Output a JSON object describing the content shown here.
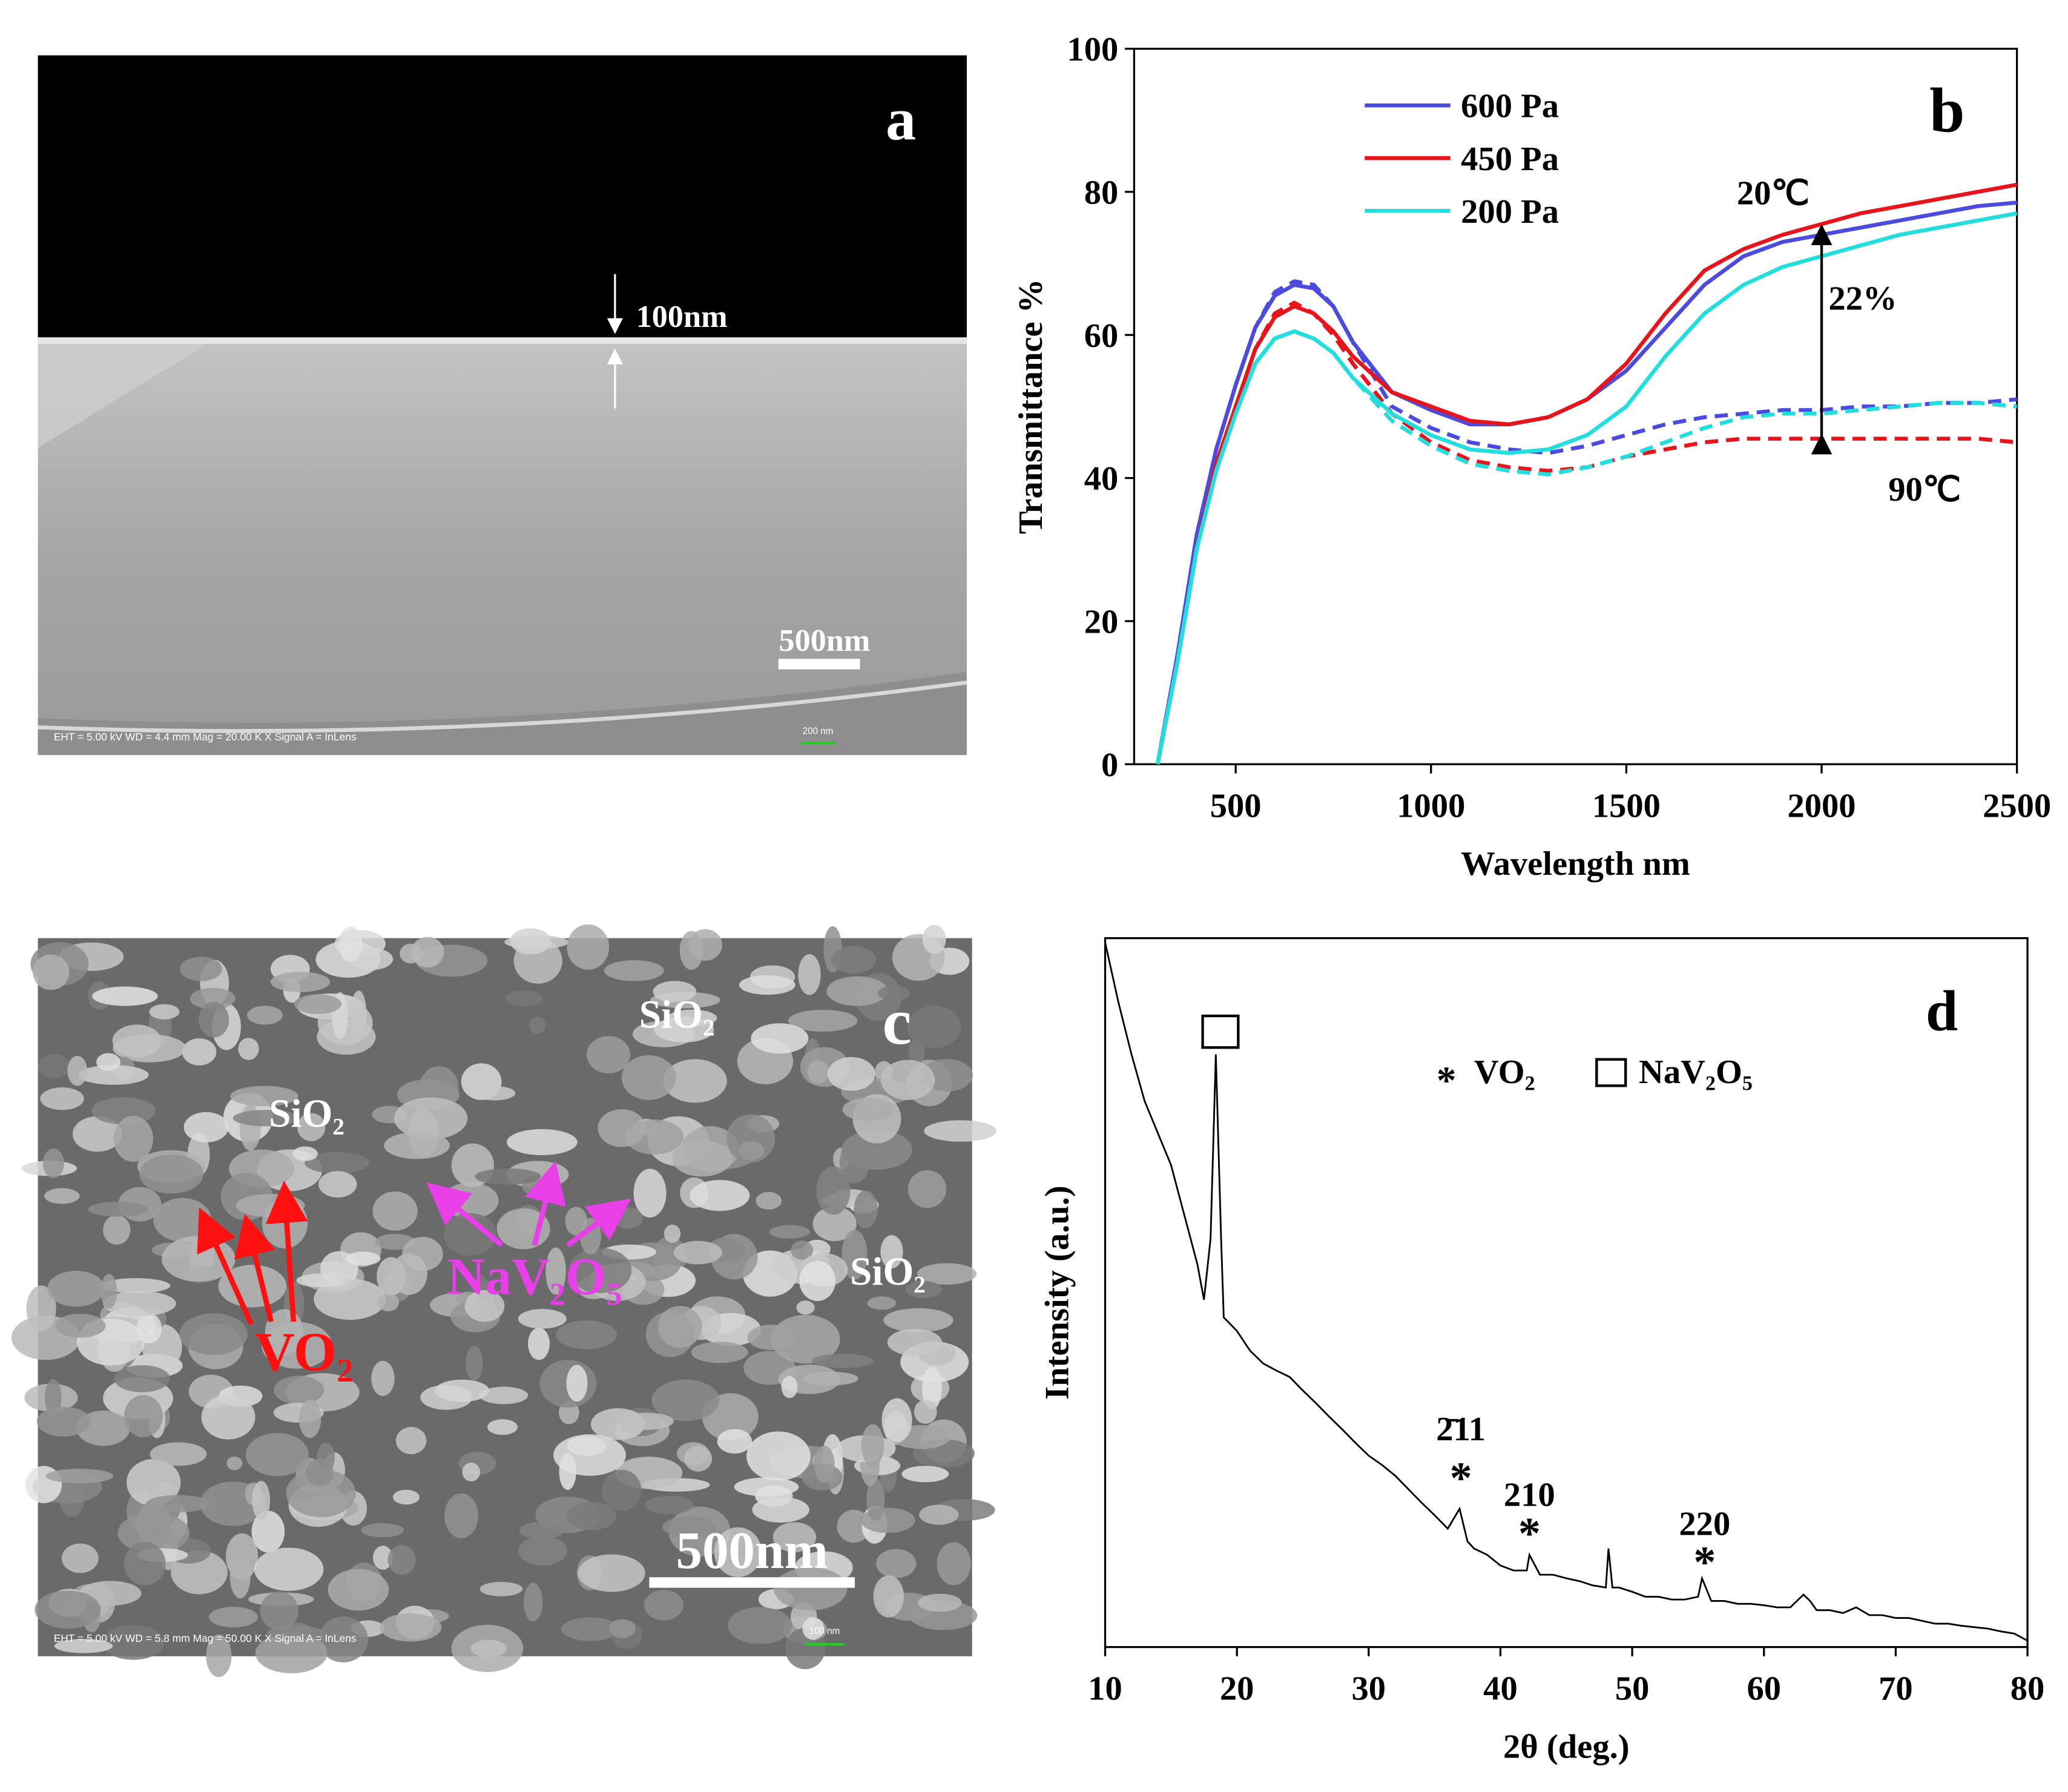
{
  "images": [
    {
      "panel_label": "a",
      "thickness": "100nm",
      "scale": "500nm",
      "footer": "EHT = 5.00 kV    WD = 4.4 mm    Mag = 20.00 K X    Signal A = InLens",
      "footer_scale": "200 nm"
    },
    {
      "panel_label": "c",
      "scale": "500nm",
      "footer": "EHT = 5.00 kV    WD = 5.8 mm    Mag = 50.00 K X    Signal A = InLens",
      "footer_scale": "100 nm",
      "labels": [
        "SiO₂",
        "SiO₂",
        "SiO₂",
        "NaV₂O₅",
        "VO₂"
      ]
    }
  ],
  "chart_data": [
    {
      "type": "line",
      "panel_label": "b",
      "xlabel": "Wavelength nm",
      "ylabel": "Transmittance %",
      "x": [
        300,
        350,
        400,
        450,
        500,
        550,
        600,
        650,
        700,
        750,
        800,
        900,
        1000,
        1100,
        1200,
        1300,
        1400,
        1500,
        1600,
        1700,
        1800,
        1900,
        2000,
        2100,
        2200,
        2300,
        2400,
        2500
      ],
      "series": [
        {
          "name": "600 Pa",
          "color": "#4b4bdf",
          "values": [
            0,
            15,
            32,
            44,
            53,
            61,
            65.5,
            67,
            66.5,
            64,
            59,
            52,
            49.5,
            47.5,
            47.5,
            48.5,
            51,
            55,
            61,
            67,
            71,
            73,
            74,
            75,
            76,
            77,
            78,
            78.5
          ],
          "dashed_values": [
            0,
            15,
            32,
            44,
            53,
            61,
            66,
            67.5,
            67,
            64,
            59,
            50,
            47,
            45,
            44,
            43.5,
            44.5,
            46,
            47.5,
            48.5,
            49,
            49.5,
            49.5,
            50,
            50,
            50.5,
            50.5,
            51
          ]
        },
        {
          "name": "450 Pa",
          "color": "#e8141c",
          "values": [
            0,
            14,
            30,
            42,
            50,
            58,
            62.5,
            64,
            63,
            60.5,
            57,
            52,
            50,
            48,
            47.5,
            48.5,
            51,
            56,
            63,
            69,
            72,
            74,
            75.5,
            77,
            78,
            79,
            80,
            81
          ],
          "dashed_values": [
            0,
            14,
            30,
            42,
            50,
            58,
            63,
            64.5,
            63,
            60,
            56,
            49,
            45,
            42.5,
            41.5,
            41,
            41.5,
            43,
            44,
            45,
            45.5,
            45.5,
            45.5,
            45.5,
            45.5,
            45.5,
            45.5,
            45
          ]
        },
        {
          "name": "200 Pa",
          "color": "#22dedd",
          "values": [
            0,
            14,
            30,
            41,
            49,
            56,
            59.5,
            60.5,
            59.5,
            57.5,
            54,
            49,
            46,
            44,
            43.5,
            44,
            46,
            50,
            57,
            63,
            67,
            69.5,
            71,
            72.5,
            74,
            75,
            76,
            77
          ],
          "dashed_values": [
            0,
            14,
            30,
            41,
            49,
            56,
            59.5,
            60.5,
            59.5,
            57.5,
            54,
            48,
            44.5,
            42,
            41,
            40.5,
            41.5,
            43,
            45,
            47,
            48.5,
            49,
            49,
            49.5,
            50,
            50.5,
            50.5,
            50
          ]
        }
      ],
      "annotations": [
        "20℃",
        "22%",
        "90℃"
      ],
      "xlim": [
        240,
        2500
      ],
      "ylim": [
        0,
        100
      ],
      "xticks": [
        500,
        1000,
        1500,
        2000,
        2500
      ],
      "yticks": [
        0,
        20,
        40,
        60,
        80,
        100
      ]
    },
    {
      "type": "line",
      "panel_label": "d",
      "xlabel": "2θ (deg.)",
      "ylabel": "Intensity (a.u.)",
      "color": "#000000",
      "x": [
        10,
        11,
        12,
        13,
        14,
        15,
        16,
        17,
        17.5,
        18,
        18.4,
        18.8,
        19,
        20,
        21,
        22,
        23,
        24,
        25,
        26,
        27,
        28,
        29,
        30,
        31,
        32,
        33,
        34,
        35,
        36,
        36.9,
        37.5,
        38,
        39,
        40,
        41,
        42,
        42.2,
        43,
        44,
        45,
        46,
        47,
        48,
        48.2,
        48.5,
        49,
        50,
        51,
        52,
        53,
        54,
        55,
        55.3,
        56,
        57,
        58,
        59,
        60,
        61,
        62,
        63,
        63.5,
        64,
        65,
        66,
        67,
        68,
        69,
        70,
        71,
        72,
        73,
        74,
        75,
        76,
        77,
        78,
        79,
        80
      ],
      "values": [
        99.4,
        91,
        83.6,
        77,
        72.5,
        68,
        61,
        54,
        49,
        57.6,
        83.6,
        57.6,
        46.5,
        44.6,
        41.8,
        40,
        39,
        38.1,
        36.2,
        34.4,
        32.5,
        30.7,
        28.8,
        27,
        25.7,
        24.2,
        22.3,
        20.4,
        18.6,
        16.7,
        19.5,
        14.9,
        13.9,
        13,
        11.5,
        10.8,
        10.8,
        13,
        10.2,
        10.2,
        9.7,
        9.3,
        8.7,
        8.4,
        13.9,
        8.4,
        8.4,
        7.8,
        7.1,
        7.1,
        6.7,
        6.7,
        7.1,
        9.7,
        6.5,
        6.5,
        6.1,
        6.1,
        5.9,
        5.6,
        5.6,
        7.4,
        6.5,
        5.2,
        5.2,
        4.8,
        5.6,
        4.5,
        4.5,
        4.1,
        4.1,
        3.7,
        3.3,
        3.3,
        3,
        2.8,
        2.6,
        2.2,
        1.9,
        0.9
      ],
      "legend": [
        "VO₂",
        "NaV₂O₅"
      ],
      "peak_labels": [
        "2̄11",
        "210",
        "220"
      ],
      "xlim": [
        10,
        80
      ],
      "ylim": [
        0,
        100
      ],
      "xticks": [
        10,
        20,
        30,
        40,
        50,
        60,
        70,
        80
      ]
    }
  ]
}
